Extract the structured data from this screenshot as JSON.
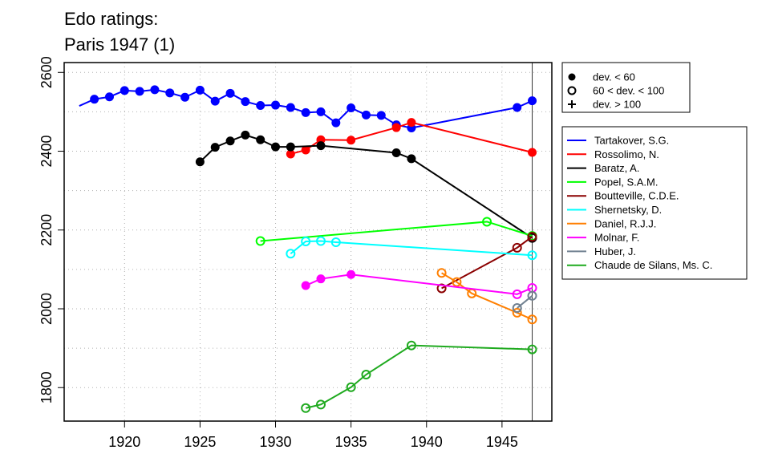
{
  "title_lines": [
    "Edo ratings:",
    "Paris 1947 (1)"
  ],
  "chart_data": {
    "type": "line",
    "title": "Edo ratings: Paris 1947 (1)",
    "xlabel": "",
    "ylabel": "",
    "xlim": [
      1916,
      1948.3
    ],
    "ylim": [
      1715,
      2625
    ],
    "x_ticks": [
      1920,
      1925,
      1930,
      1935,
      1940,
      1945
    ],
    "y_ticks": [
      1800,
      2000,
      2200,
      2400,
      2600
    ],
    "grid": true,
    "reference_line_x": 1947,
    "marker_legend": [
      {
        "label": "dev. < 60",
        "marker": "filled-circle"
      },
      {
        "label": "60 < dev. < 100",
        "marker": "open-circle"
      },
      {
        "label": "dev. > 100",
        "marker": "plus"
      }
    ],
    "legend_position": "right",
    "series": [
      {
        "name": "Tartakover, S.G.",
        "color": "#0000ff",
        "points": [
          [
            1917,
            2515,
            "none"
          ],
          [
            1918,
            2532,
            "filled"
          ],
          [
            1919,
            2538,
            "filled"
          ],
          [
            1920,
            2554,
            "filled"
          ],
          [
            1921,
            2552,
            "filled"
          ],
          [
            1922,
            2556,
            "filled"
          ],
          [
            1923,
            2548,
            "filled"
          ],
          [
            1924,
            2537,
            "filled"
          ],
          [
            1925,
            2555,
            "filled"
          ],
          [
            1926,
            2527,
            "filled"
          ],
          [
            1927,
            2547,
            "filled"
          ],
          [
            1928,
            2526,
            "filled"
          ],
          [
            1929,
            2516,
            "filled"
          ],
          [
            1930,
            2517,
            "filled"
          ],
          [
            1931,
            2511,
            "filled"
          ],
          [
            1932,
            2498,
            "filled"
          ],
          [
            1933,
            2500,
            "filled"
          ],
          [
            1934,
            2472,
            "filled"
          ],
          [
            1935,
            2510,
            "filled"
          ],
          [
            1936,
            2492,
            "filled"
          ],
          [
            1937,
            2491,
            "filled"
          ],
          [
            1938,
            2467,
            "filled"
          ],
          [
            1939,
            2459,
            "filled"
          ],
          [
            1946,
            2511,
            "filled"
          ],
          [
            1947,
            2528,
            "filled"
          ]
        ]
      },
      {
        "name": "Rossolimo, N.",
        "color": "#ff0000",
        "points": [
          [
            1931,
            2393,
            "filled"
          ],
          [
            1932,
            2403,
            "filled"
          ],
          [
            1933,
            2429,
            "filled"
          ],
          [
            1935,
            2428,
            "filled"
          ],
          [
            1938,
            2460,
            "filled"
          ],
          [
            1939,
            2473,
            "filled"
          ],
          [
            1947,
            2397,
            "filled"
          ]
        ]
      },
      {
        "name": "Baratz, A.",
        "color": "#000000",
        "points": [
          [
            1925,
            2373,
            "filled"
          ],
          [
            1926,
            2410,
            "filled"
          ],
          [
            1927,
            2426,
            "filled"
          ],
          [
            1928,
            2441,
            "filled"
          ],
          [
            1929,
            2429,
            "filled"
          ],
          [
            1930,
            2411,
            "filled"
          ],
          [
            1931,
            2411,
            "filled"
          ],
          [
            1933,
            2414,
            "filled"
          ],
          [
            1938,
            2396,
            "filled"
          ],
          [
            1939,
            2381,
            "filled"
          ],
          [
            1947,
            2180,
            "open"
          ]
        ]
      },
      {
        "name": "Popel, S.A.M.",
        "color": "#00ff00",
        "points": [
          [
            1929,
            2172,
            "open"
          ],
          [
            1944,
            2221,
            "open"
          ],
          [
            1947,
            2185,
            "open"
          ]
        ]
      },
      {
        "name": "Boutteville, C.D.E.",
        "color": "#8b0000",
        "points": [
          [
            1941,
            2052,
            "open"
          ],
          [
            1946,
            2155,
            "open"
          ],
          [
            1947,
            2183,
            "open"
          ]
        ]
      },
      {
        "name": "Shernetsky, D.",
        "color": "#00ffff",
        "points": [
          [
            1931,
            2140,
            "open"
          ],
          [
            1932,
            2171,
            "open"
          ],
          [
            1933,
            2172,
            "open"
          ],
          [
            1934,
            2169,
            "open"
          ],
          [
            1947,
            2136,
            "open"
          ]
        ]
      },
      {
        "name": "Daniel, R.J.J.",
        "color": "#ff7f00",
        "points": [
          [
            1941,
            2091,
            "open"
          ],
          [
            1942,
            2068,
            "open"
          ],
          [
            1943,
            2039,
            "open"
          ],
          [
            1946,
            1990,
            "open"
          ],
          [
            1947,
            1973,
            "open"
          ]
        ]
      },
      {
        "name": "Molnar, F.",
        "color": "#ff00ff",
        "points": [
          [
            1932,
            2059,
            "filled"
          ],
          [
            1933,
            2076,
            "filled"
          ],
          [
            1935,
            2087,
            "filled"
          ],
          [
            1946,
            2037,
            "open"
          ],
          [
            1947,
            2053,
            "open"
          ]
        ]
      },
      {
        "name": "Huber, J.",
        "color": "#708090",
        "points": [
          [
            1946,
            2002,
            "open"
          ],
          [
            1947,
            2033,
            "open"
          ]
        ]
      },
      {
        "name": "Chaude de Silans, Ms. C.",
        "color": "#1faa1f",
        "points": [
          [
            1932,
            1748,
            "open"
          ],
          [
            1933,
            1757,
            "open"
          ],
          [
            1935,
            1801,
            "open"
          ],
          [
            1936,
            1833,
            "open"
          ],
          [
            1939,
            1907,
            "open"
          ],
          [
            1947,
            1897,
            "open"
          ]
        ]
      }
    ]
  }
}
